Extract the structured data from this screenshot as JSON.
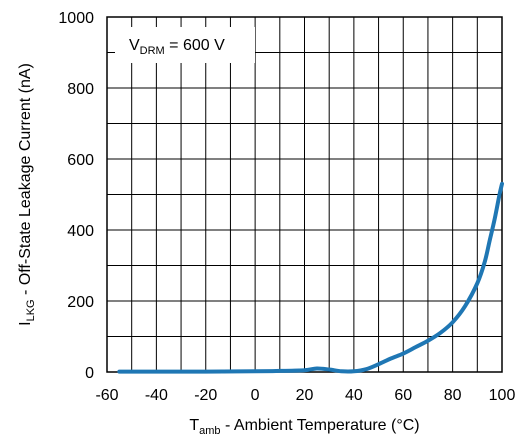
{
  "chart_data": {
    "type": "line",
    "xlabel_main": "T",
    "xlabel_sub": "amb",
    "xlabel_rest": " - Ambient Temperature (°C)",
    "ylabel_main": "I",
    "ylabel_sub": "LKG",
    "ylabel_rest": " - Off-State Leakage Current (nA)",
    "xlim": [
      -60,
      100
    ],
    "ylim": [
      0,
      1000
    ],
    "x_ticks": [
      -60,
      -40,
      -20,
      0,
      20,
      40,
      60,
      80,
      100
    ],
    "y_ticks": [
      0,
      200,
      400,
      600,
      800,
      1000
    ],
    "x_grid_step": 10,
    "y_grid_step": 100,
    "grid": true,
    "annotation": {
      "main": "V",
      "sub": "DRM",
      "rest": " = 600 V",
      "position": "top-left"
    },
    "series": [
      {
        "color": "#1f77b4",
        "x": [
          -55,
          -40,
          -20,
          0,
          10,
          20,
          25,
          30,
          35,
          40,
          45,
          50,
          55,
          60,
          65,
          70,
          75,
          80,
          85,
          90,
          93,
          95,
          97,
          99,
          100
        ],
        "y": [
          1,
          1,
          1,
          2,
          3,
          5,
          10,
          7,
          2,
          2,
          8,
          22,
          38,
          52,
          70,
          88,
          110,
          140,
          185,
          250,
          310,
          370,
          430,
          500,
          530
        ]
      }
    ]
  }
}
